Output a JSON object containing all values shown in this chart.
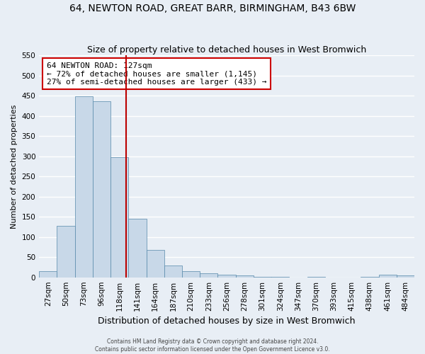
{
  "title": "64, NEWTON ROAD, GREAT BARR, BIRMINGHAM, B43 6BW",
  "subtitle": "Size of property relative to detached houses in West Bromwich",
  "xlabel": "Distribution of detached houses by size in West Bromwich",
  "ylabel": "Number of detached properties",
  "bar_color": "#c8d8e8",
  "bar_edge_color": "#5588aa",
  "bg_color": "#e8eef5",
  "grid_color": "#ffffff",
  "categories": [
    "27sqm",
    "50sqm",
    "73sqm",
    "96sqm",
    "118sqm",
    "141sqm",
    "164sqm",
    "187sqm",
    "210sqm",
    "233sqm",
    "256sqm",
    "278sqm",
    "301sqm",
    "324sqm",
    "347sqm",
    "370sqm",
    "393sqm",
    "415sqm",
    "438sqm",
    "461sqm",
    "484sqm"
  ],
  "values": [
    15,
    128,
    448,
    437,
    298,
    145,
    68,
    29,
    16,
    10,
    7,
    5,
    1,
    1,
    0,
    1,
    0,
    0,
    1,
    7,
    5
  ],
  "ylim": [
    0,
    550
  ],
  "yticks": [
    0,
    50,
    100,
    150,
    200,
    250,
    300,
    350,
    400,
    450,
    500,
    550
  ],
  "vline_x_index": 4.35,
  "vline_color": "#bb0000",
  "annotation_text": "64 NEWTON ROAD: 127sqm\n← 72% of detached houses are smaller (1,145)\n27% of semi-detached houses are larger (433) →",
  "annotation_box_color": "#cc0000",
  "footer1": "Contains HM Land Registry data © Crown copyright and database right 2024.",
  "footer2": "Contains public sector information licensed under the Open Government Licence v3.0.",
  "title_fontsize": 10,
  "subtitle_fontsize": 9,
  "tick_fontsize": 7.5,
  "ylabel_fontsize": 8,
  "xlabel_fontsize": 9
}
